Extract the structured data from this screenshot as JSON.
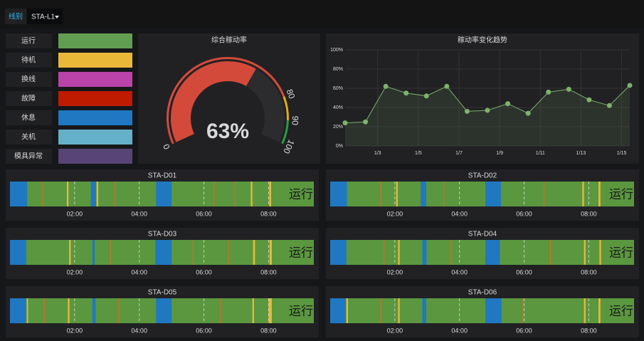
{
  "filter": {
    "label": "线别",
    "value": "STA-L1"
  },
  "legend": [
    {
      "label": "运行",
      "color": "#629e51"
    },
    {
      "label": "待机",
      "color": "#eab839"
    },
    {
      "label": "换线",
      "color": "#ba43a9"
    },
    {
      "label": "故障",
      "color": "#bf1b00"
    },
    {
      "label": "休息",
      "color": "#1f78c1"
    },
    {
      "label": "关机",
      "color": "#64b0c8"
    },
    {
      "label": "模具异常",
      "color": "#584477"
    }
  ],
  "gauge": {
    "title": "综合稼动率",
    "value": 63,
    "value_label": "63%",
    "min": 0,
    "max": 100,
    "thresholds": [
      80,
      90
    ],
    "threshold_colors": [
      "#d44a3a",
      "#e5ac0e",
      "#299c46"
    ],
    "ticks": [
      0,
      80,
      90,
      100
    ]
  },
  "trend": {
    "type": "line",
    "title": "稼动率变化趋势",
    "color": "#7eb26d",
    "x": [
      1.4,
      2.4,
      3.4,
      4.4,
      5.4,
      6.4,
      7.4,
      8.4,
      9.4,
      10.4,
      11.4,
      12.4,
      13.4,
      14.4,
      15.4
    ],
    "values": [
      24,
      25,
      62,
      55,
      52,
      62,
      36,
      37,
      44,
      34,
      56,
      59,
      48,
      42,
      63
    ],
    "xlim": [
      1.4,
      15.4
    ],
    "xticks": [
      {
        "value": 3,
        "label": "1/3"
      },
      {
        "value": 5,
        "label": "1/5"
      },
      {
        "value": 7,
        "label": "1/7"
      },
      {
        "value": 9,
        "label": "1/9"
      },
      {
        "value": 11,
        "label": "1/11"
      },
      {
        "value": 13,
        "label": "1/13"
      },
      {
        "value": 15,
        "label": "1/15"
      }
    ],
    "ylim": [
      0,
      100
    ],
    "yticks": [
      {
        "value": 0,
        "label": "0%"
      },
      {
        "value": 20,
        "label": "20%"
      },
      {
        "value": 40,
        "label": "40%"
      },
      {
        "value": 60,
        "label": "60%"
      },
      {
        "value": 80,
        "label": "80%"
      },
      {
        "value": 100,
        "label": "100%"
      }
    ],
    "grid": true
  },
  "time_axis": {
    "xlim": [
      0,
      9.4
    ],
    "xticks": [
      {
        "value": 2,
        "label": "02:00"
      },
      {
        "value": 4,
        "label": "04:00"
      },
      {
        "value": 6,
        "label": "06:00"
      },
      {
        "value": 8,
        "label": "08:00"
      }
    ]
  },
  "timelines": [
    {
      "title": "STA-D01",
      "status": "运行",
      "segments": [
        {
          "start": 0,
          "end": 9.4,
          "color": "#5a973f"
        },
        {
          "start": 0,
          "end": 0.53,
          "color": "#1f78c1"
        },
        {
          "start": 1.0,
          "end": 1.03,
          "color": "#c1742a"
        },
        {
          "start": 1.76,
          "end": 1.81,
          "color": "#eab839"
        },
        {
          "start": 2.5,
          "end": 2.66,
          "color": "#1f78c1"
        },
        {
          "start": 2.68,
          "end": 2.73,
          "color": "#eab839"
        },
        {
          "start": 3.23,
          "end": 3.26,
          "color": "#c1742a"
        },
        {
          "start": 4.52,
          "end": 5.0,
          "color": "#1f78c1"
        },
        {
          "start": 6.3,
          "end": 6.33,
          "color": "#c1742a"
        },
        {
          "start": 6.95,
          "end": 6.98,
          "color": "#c1742a"
        },
        {
          "start": 7.45,
          "end": 7.5,
          "color": "#eab839"
        },
        {
          "start": 8.02,
          "end": 8.08,
          "color": "#eab839"
        }
      ]
    },
    {
      "title": "STA-D02",
      "status": "运行",
      "segments": [
        {
          "start": 0,
          "end": 9.4,
          "color": "#5a973f"
        },
        {
          "start": 0,
          "end": 0.52,
          "color": "#1f78c1"
        },
        {
          "start": 1.55,
          "end": 1.58,
          "color": "#c1742a"
        },
        {
          "start": 2.04,
          "end": 2.09,
          "color": "#eab839"
        },
        {
          "start": 2.8,
          "end": 2.97,
          "color": "#1f78c1"
        },
        {
          "start": 3.5,
          "end": 3.53,
          "color": "#c1742a"
        },
        {
          "start": 4.8,
          "end": 5.28,
          "color": "#1f78c1"
        },
        {
          "start": 6.6,
          "end": 6.63,
          "color": "#c1742a"
        },
        {
          "start": 7.8,
          "end": 7.85,
          "color": "#eab839"
        },
        {
          "start": 8.3,
          "end": 8.36,
          "color": "#eab839"
        }
      ]
    },
    {
      "title": "STA-D03",
      "status": "运行",
      "segments": [
        {
          "start": 0,
          "end": 9.4,
          "color": "#5a973f"
        },
        {
          "start": 0,
          "end": 0.5,
          "color": "#1f78c1"
        },
        {
          "start": 1.83,
          "end": 1.88,
          "color": "#eab839"
        },
        {
          "start": 2.55,
          "end": 2.62,
          "color": "#1f78c1"
        },
        {
          "start": 3.1,
          "end": 3.13,
          "color": "#c1742a"
        },
        {
          "start": 4.5,
          "end": 5.0,
          "color": "#1f78c1"
        },
        {
          "start": 5.65,
          "end": 5.68,
          "color": "#c1742a"
        },
        {
          "start": 6.75,
          "end": 6.78,
          "color": "#c1742a"
        },
        {
          "start": 7.52,
          "end": 7.58,
          "color": "#eab839"
        },
        {
          "start": 8.03,
          "end": 8.1,
          "color": "#eab839"
        }
      ]
    },
    {
      "title": "STA-D04",
      "status": "运行",
      "segments": [
        {
          "start": 0,
          "end": 9.4,
          "color": "#5a973f"
        },
        {
          "start": 0,
          "end": 0.5,
          "color": "#1f78c1"
        },
        {
          "start": 1.65,
          "end": 1.68,
          "color": "#c1742a"
        },
        {
          "start": 2.1,
          "end": 2.15,
          "color": "#eab839"
        },
        {
          "start": 2.85,
          "end": 2.98,
          "color": "#1f78c1"
        },
        {
          "start": 3.72,
          "end": 3.75,
          "color": "#c1742a"
        },
        {
          "start": 4.8,
          "end": 5.25,
          "color": "#1f78c1"
        },
        {
          "start": 6.8,
          "end": 6.83,
          "color": "#c1742a"
        },
        {
          "start": 7.85,
          "end": 7.9,
          "color": "#eab839"
        },
        {
          "start": 8.33,
          "end": 8.38,
          "color": "#eab839"
        }
      ]
    },
    {
      "title": "STA-D05",
      "status": "运行",
      "segments": [
        {
          "start": 0,
          "end": 9.4,
          "color": "#5a973f"
        },
        {
          "start": 0,
          "end": 0.5,
          "color": "#1f78c1"
        },
        {
          "start": 0.52,
          "end": 0.56,
          "color": "#eab839"
        },
        {
          "start": 1.05,
          "end": 1.08,
          "color": "#c1742a"
        },
        {
          "start": 1.79,
          "end": 1.84,
          "color": "#eab839"
        },
        {
          "start": 2.55,
          "end": 2.65,
          "color": "#1f78c1"
        },
        {
          "start": 3.35,
          "end": 3.38,
          "color": "#c1742a"
        },
        {
          "start": 4.52,
          "end": 5.0,
          "color": "#1f78c1"
        },
        {
          "start": 6.5,
          "end": 6.53,
          "color": "#c1742a"
        },
        {
          "start": 7.5,
          "end": 7.55,
          "color": "#eab839"
        },
        {
          "start": 8.0,
          "end": 8.1,
          "color": "#eab839"
        }
      ]
    },
    {
      "title": "STA-D06",
      "status": "运行",
      "segments": [
        {
          "start": 0,
          "end": 9.4,
          "color": "#5a973f"
        },
        {
          "start": 0,
          "end": 0.48,
          "color": "#1f78c1"
        },
        {
          "start": 0.5,
          "end": 0.55,
          "color": "#eab839"
        },
        {
          "start": 1.55,
          "end": 1.58,
          "color": "#c1742a"
        },
        {
          "start": 2.1,
          "end": 2.15,
          "color": "#eab839"
        },
        {
          "start": 2.85,
          "end": 2.97,
          "color": "#1f78c1"
        },
        {
          "start": 4.8,
          "end": 5.3,
          "color": "#1f78c1"
        },
        {
          "start": 5.95,
          "end": 5.98,
          "color": "#c1742a"
        },
        {
          "start": 7.85,
          "end": 7.9,
          "color": "#eab839"
        },
        {
          "start": 8.3,
          "end": 8.36,
          "color": "#eab839"
        }
      ]
    }
  ]
}
